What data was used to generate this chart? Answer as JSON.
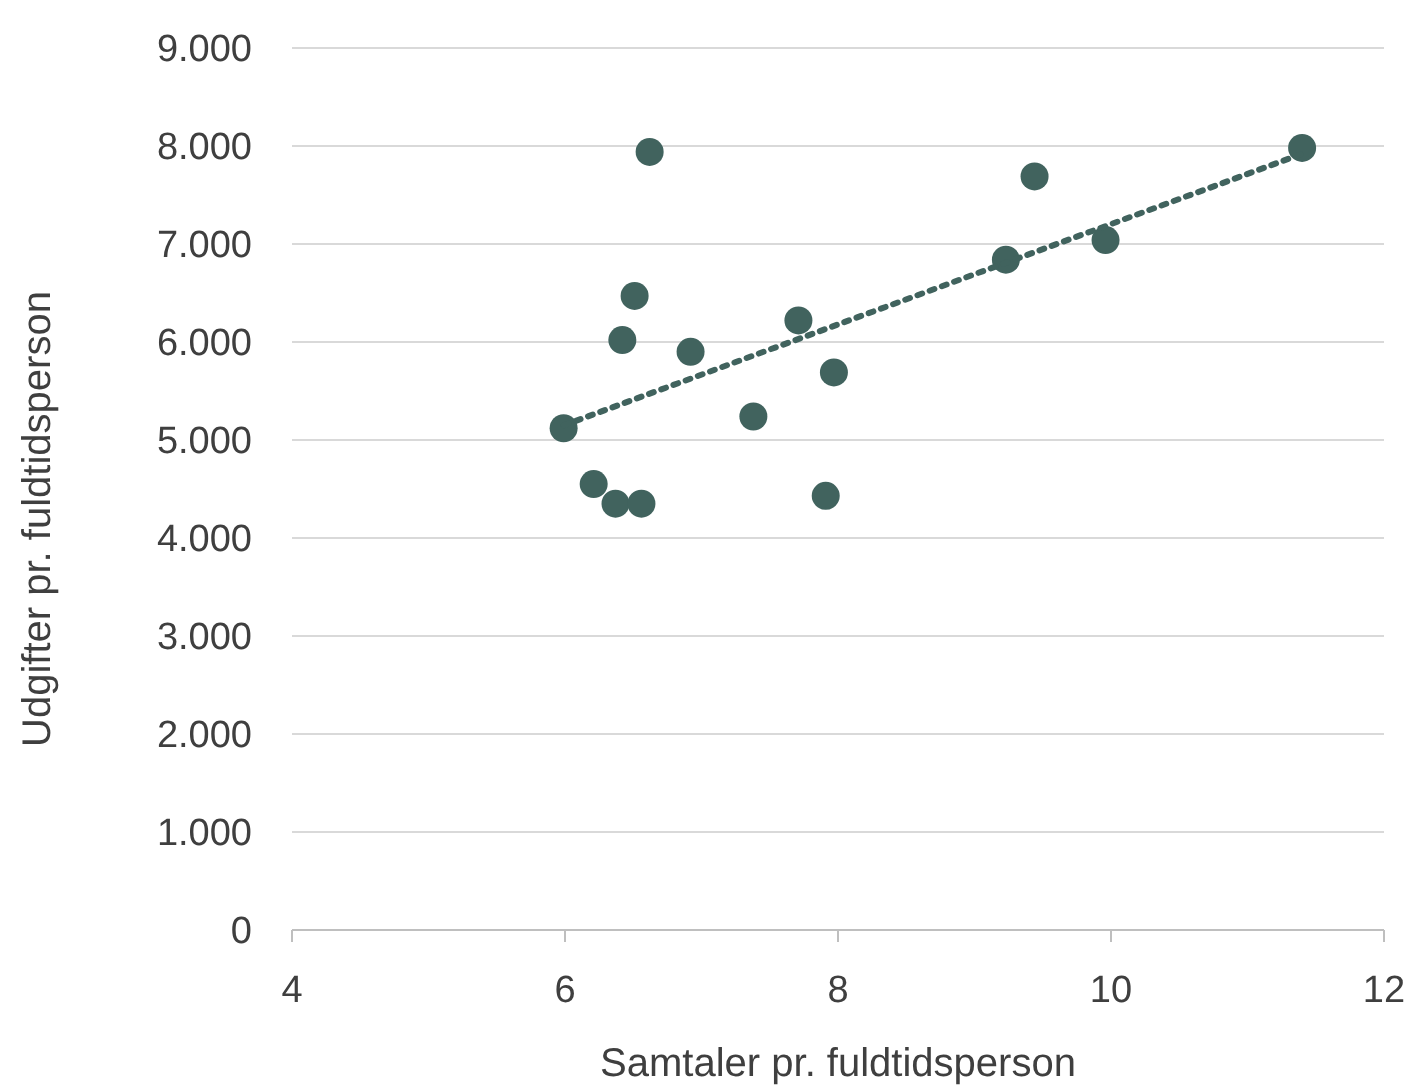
{
  "chart_data": {
    "type": "scatter",
    "xlabel": "Samtaler pr. fuldtidsperson",
    "ylabel": "Udgifter pr. fuldtidsperson",
    "xlim": [
      4,
      12
    ],
    "xticks": [
      4,
      6,
      8,
      10,
      12
    ],
    "ylim": [
      0,
      9000
    ],
    "yticks": [
      {
        "value": 0,
        "label": "0"
      },
      {
        "value": 1000,
        "label": "1.000"
      },
      {
        "value": 2000,
        "label": "2.000"
      },
      {
        "value": 3000,
        "label": "3.000"
      },
      {
        "value": 4000,
        "label": "4.000"
      },
      {
        "value": 5000,
        "label": "5.000"
      },
      {
        "value": 6000,
        "label": "6.000"
      },
      {
        "value": 7000,
        "label": "7.000"
      },
      {
        "value": 8000,
        "label": "8.000"
      },
      {
        "value": 9000,
        "label": "9.000"
      }
    ],
    "grid": "y",
    "series": [
      {
        "marker": "circle",
        "color": "#41635e",
        "x": [
          5.99,
          6.21,
          6.37,
          6.56,
          6.42,
          6.51,
          6.62,
          6.92,
          7.38,
          7.71,
          7.91,
          7.97,
          9.23,
          9.44,
          9.96,
          11.4
        ],
        "values": [
          5120,
          4550,
          4350,
          4350,
          6020,
          6470,
          7940,
          5900,
          5240,
          6220,
          4430,
          5690,
          6840,
          7690,
          7040,
          7980
        ]
      },
      {
        "type": "line",
        "color": "#41635e",
        "line_style": "dotted",
        "x": [
          5.99,
          11.4
        ],
        "values": [
          5150,
          7920
        ]
      }
    ]
  }
}
